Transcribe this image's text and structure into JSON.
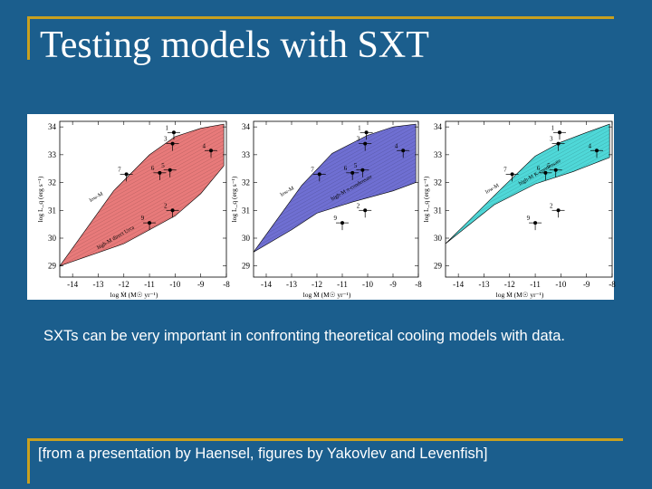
{
  "slide": {
    "title": "Testing models with SXT",
    "caption": "SXTs can be very important in confronting theoretical cooling models with data.",
    "credit": "[from a presentation by Haensel, figures by Yakovlev and Levenfish]"
  },
  "colors": {
    "background": "#1b5e8d",
    "accent": "#c8a020"
  },
  "chart_data": [
    {
      "type": "area",
      "xlabel": "log Ṁ (M☉ yr⁻¹)",
      "ylabel": "log L_q (erg s⁻¹)",
      "xlim": [
        -14.5,
        -8
      ],
      "ylim": [
        28.6,
        34.2
      ],
      "x_ticks": [
        "-14",
        "-13",
        "-12",
        "-11",
        "-10",
        "-9",
        "-8"
      ],
      "y_ticks": [
        "29",
        "30",
        "31",
        "32",
        "33",
        "34"
      ],
      "fill_color": "#e87a7a",
      "band_upper": [
        {
          "x": -14.5,
          "y": 29.0
        },
        {
          "x": -12.4,
          "y": 31.7
        },
        {
          "x": -11,
          "y": 33.0
        },
        {
          "x": -10,
          "y": 33.65
        },
        {
          "x": -9,
          "y": 33.95
        },
        {
          "x": -8.1,
          "y": 34.1
        }
      ],
      "band_lower": [
        {
          "x": -14.5,
          "y": 29.0
        },
        {
          "x": -12,
          "y": 29.8
        },
        {
          "x": -10,
          "y": 30.8
        },
        {
          "x": -9,
          "y": 31.6
        },
        {
          "x": -8.1,
          "y": 32.6
        }
      ],
      "annotations": [
        {
          "text": "low-M",
          "x": -13.3,
          "y": 31.3
        },
        {
          "text": "high-M direct Urca",
          "x": -13.0,
          "y": 29.6
        }
      ],
      "sources": [
        {
          "label": "1",
          "x": -10.05,
          "y": 33.8
        },
        {
          "label": "3",
          "x": -10.1,
          "y": 33.4
        },
        {
          "label": "4",
          "x": -8.6,
          "y": 33.15
        },
        {
          "label": "5",
          "x": -10.2,
          "y": 32.45
        },
        {
          "label": "6",
          "x": -10.6,
          "y": 32.35
        },
        {
          "label": "7",
          "x": -11.9,
          "y": 32.3
        },
        {
          "label": "2",
          "x": -10.1,
          "y": 31.0
        },
        {
          "label": "9",
          "x": -11.0,
          "y": 30.55
        }
      ]
    },
    {
      "type": "area",
      "xlabel": "log Ṁ (M☉ yr⁻¹)",
      "ylabel": "log L_q (erg s⁻¹)",
      "xlim": [
        -14.5,
        -8
      ],
      "ylim": [
        28.6,
        34.2
      ],
      "x_ticks": [
        "-14",
        "-13",
        "-12",
        "-11",
        "-10",
        "-9",
        "-8"
      ],
      "y_ticks": [
        "29",
        "30",
        "31",
        "32",
        "33",
        "34"
      ],
      "fill_color": "#6f6fd2",
      "band_upper": [
        {
          "x": -14.5,
          "y": 29.5
        },
        {
          "x": -12.6,
          "y": 31.9
        },
        {
          "x": -11.4,
          "y": 33.05
        },
        {
          "x": -10,
          "y": 33.7
        },
        {
          "x": -9,
          "y": 34.0
        },
        {
          "x": -8.1,
          "y": 34.1
        }
      ],
      "band_lower": [
        {
          "x": -14.5,
          "y": 29.5
        },
        {
          "x": -13,
          "y": 30.3
        },
        {
          "x": -12,
          "y": 30.9
        },
        {
          "x": -10.6,
          "y": 31.3
        },
        {
          "x": -9,
          "y": 31.7
        },
        {
          "x": -8.1,
          "y": 32.0
        }
      ],
      "annotations": [
        {
          "text": "low-M",
          "x": -13.4,
          "y": 31.5
        },
        {
          "text": "high-M π-condensate",
          "x": -11.4,
          "y": 31.35
        }
      ],
      "sources": [
        {
          "label": "1",
          "x": -10.05,
          "y": 33.8
        },
        {
          "label": "3",
          "x": -10.1,
          "y": 33.4
        },
        {
          "label": "4",
          "x": -8.6,
          "y": 33.15
        },
        {
          "label": "5",
          "x": -10.2,
          "y": 32.45
        },
        {
          "label": "6",
          "x": -10.6,
          "y": 32.35
        },
        {
          "label": "7",
          "x": -11.9,
          "y": 32.3
        },
        {
          "label": "2",
          "x": -10.1,
          "y": 31.0
        },
        {
          "label": "9",
          "x": -11.0,
          "y": 30.55
        }
      ]
    },
    {
      "type": "area",
      "xlabel": "log Ṁ (M☉ yr⁻¹)",
      "ylabel": "log L_q (erg s⁻¹)",
      "xlim": [
        -14.5,
        -8
      ],
      "ylim": [
        28.6,
        34.2
      ],
      "x_ticks": [
        "-14",
        "-13",
        "-12",
        "-11",
        "-10",
        "-9",
        "-8"
      ],
      "y_ticks": [
        "29",
        "30",
        "31",
        "32",
        "33",
        "34"
      ],
      "fill_color": "#4fd8d8",
      "band_upper": [
        {
          "x": -14.5,
          "y": 29.8
        },
        {
          "x": -12.3,
          "y": 31.8
        },
        {
          "x": -11,
          "y": 32.95
        },
        {
          "x": -10,
          "y": 33.45
        },
        {
          "x": -9,
          "y": 33.8
        },
        {
          "x": -8.1,
          "y": 34.1
        }
      ],
      "band_lower": [
        {
          "x": -14.5,
          "y": 29.8
        },
        {
          "x": -12.6,
          "y": 31.2
        },
        {
          "x": -11,
          "y": 31.95
        },
        {
          "x": -9.5,
          "y": 32.4
        },
        {
          "x": -8.1,
          "y": 32.9
        }
      ],
      "annotations": [
        {
          "text": "low-M",
          "x": -12.9,
          "y": 31.6
        },
        {
          "text": "high-M K-condensate",
          "x": -11.6,
          "y": 31.9
        }
      ],
      "sources": [
        {
          "label": "1",
          "x": -10.05,
          "y": 33.8
        },
        {
          "label": "3",
          "x": -10.1,
          "y": 33.4
        },
        {
          "label": "4",
          "x": -8.6,
          "y": 33.15
        },
        {
          "label": "5",
          "x": -10.2,
          "y": 32.45
        },
        {
          "label": "6",
          "x": -10.6,
          "y": 32.35
        },
        {
          "label": "7",
          "x": -11.9,
          "y": 32.3
        },
        {
          "label": "2",
          "x": -10.1,
          "y": 31.0
        },
        {
          "label": "9",
          "x": -11.0,
          "y": 30.55
        }
      ]
    }
  ]
}
